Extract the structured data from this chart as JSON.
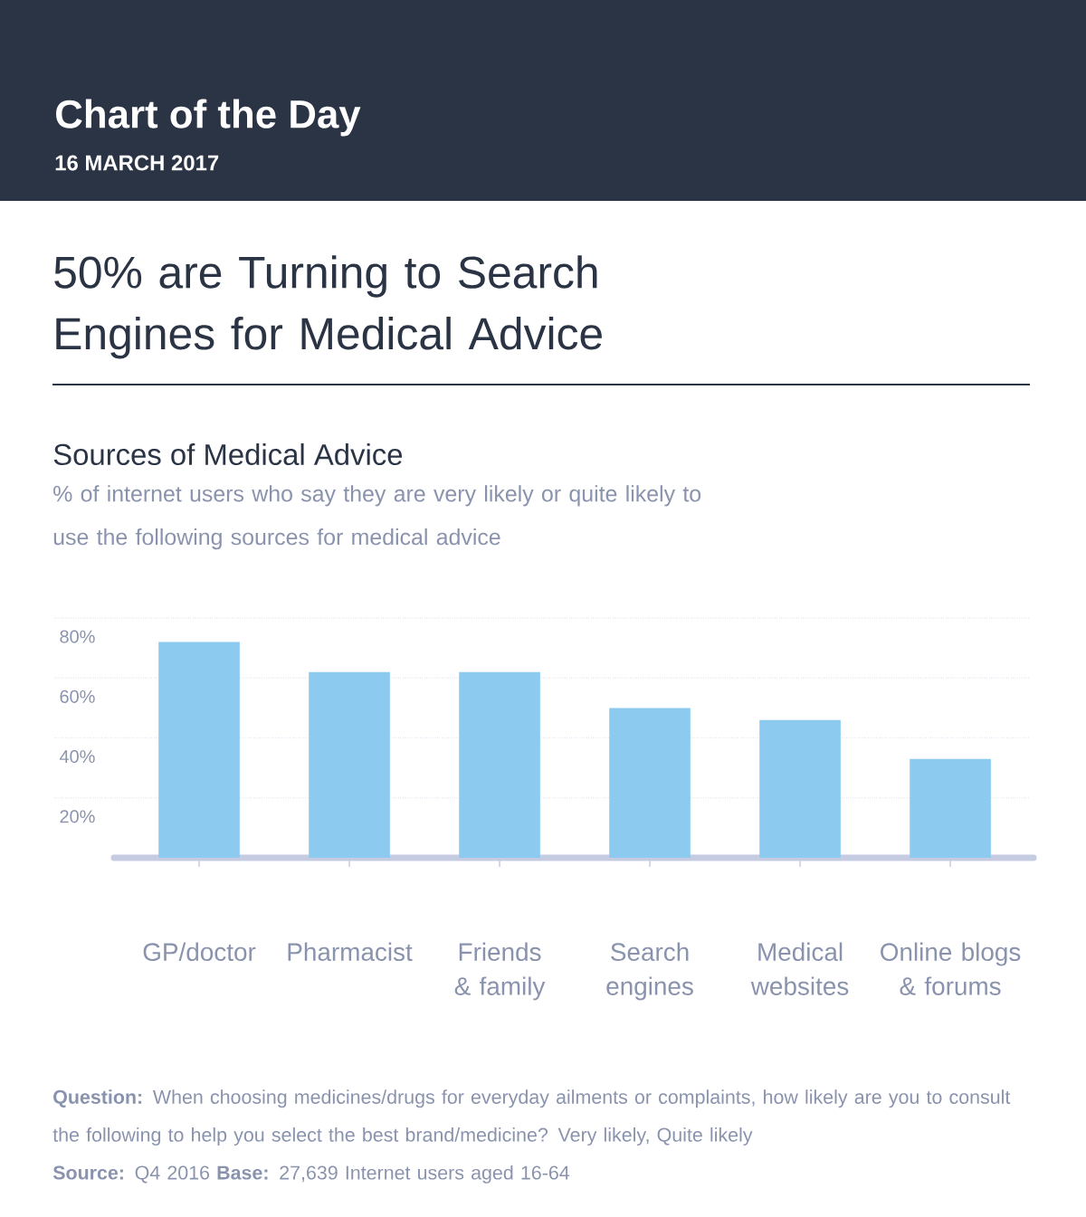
{
  "chart_data": {
    "type": "bar",
    "title": "50% are Turning to Search Engines for Medical Advice",
    "subtitle": "Sources of Medical Advice",
    "annotations": [
      "Chart of the Day",
      "16 MARCH 2017",
      "% of internet users who say they are very likely or quite likely to use the following sources for medical advice",
      "**Question:** When choosing medicines/drugs for everyday ailments or complaints, how likely are you to consult the following to help you select the best brand/medicine? Very likely, Quite likely",
      "**Source:** Q4 2016 **Base:** 27,639 Internet users aged 16-64"
    ],
    "categories": [
      "GP/doctor",
      "Pharmacist",
      "Friends & family",
      "Search engines",
      "Medical websites",
      "Online blogs & forums"
    ],
    "values": [
      72,
      62,
      62,
      50,
      46,
      33
    ],
    "color": "#8ccaef",
    "ylim": [
      0,
      80
    ],
    "yticks": [
      {
        "value": 20,
        "label": "20%"
      },
      {
        "value": 40,
        "label": "40%"
      },
      {
        "value": 60,
        "label": "60%"
      },
      {
        "value": 80,
        "label": "80%"
      }
    ],
    "grid": "y"
  }
}
